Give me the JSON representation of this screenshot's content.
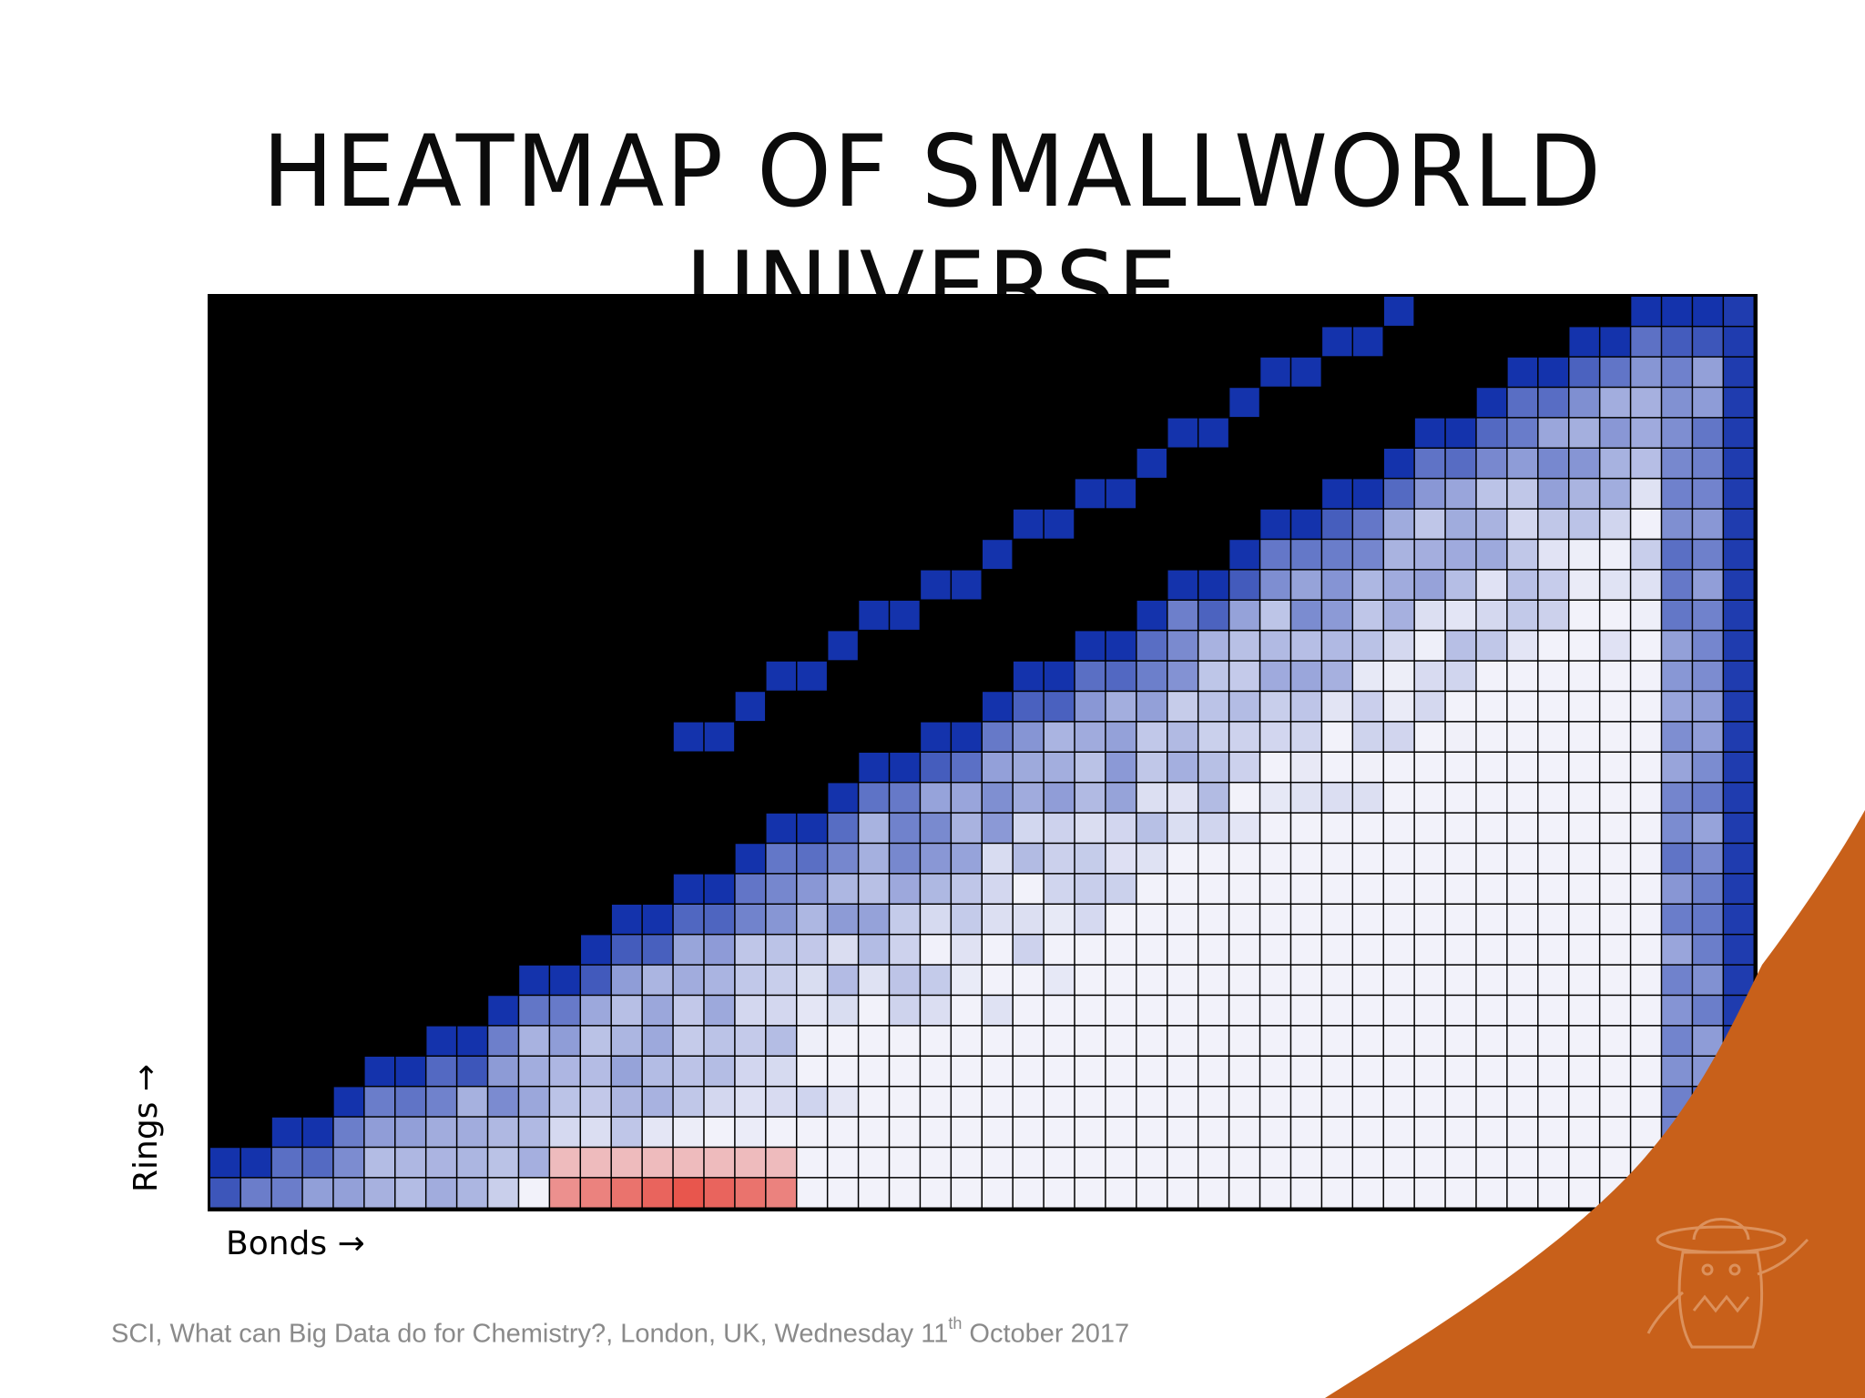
{
  "slide": {
    "title": "HEATMAP OF SMALLWORLD UNIVERSE",
    "footer_prefix": "SCI, What can Big Data do for Chemistry?, London, UK, Wednesday 11",
    "footer_sup": "th",
    "footer_suffix": " October 2017",
    "accent_color": "#c8601a",
    "mascot_icon": "sombrero-mascot-logo"
  },
  "chart_data": {
    "type": "heatmap",
    "title": "",
    "xlabel": "Bonds →",
    "ylabel": "Rings →",
    "grid": true,
    "background_color": "#000000",
    "palette": {
      "high": "#e63a2e",
      "mid": "#f2f2fa",
      "low": "#0a2aa8"
    },
    "columns": 50,
    "rows": 30,
    "note_values": "relative density, 0 (dark blue) to 1 (white) ; 1.0-2.0 red hot spot"
  }
}
